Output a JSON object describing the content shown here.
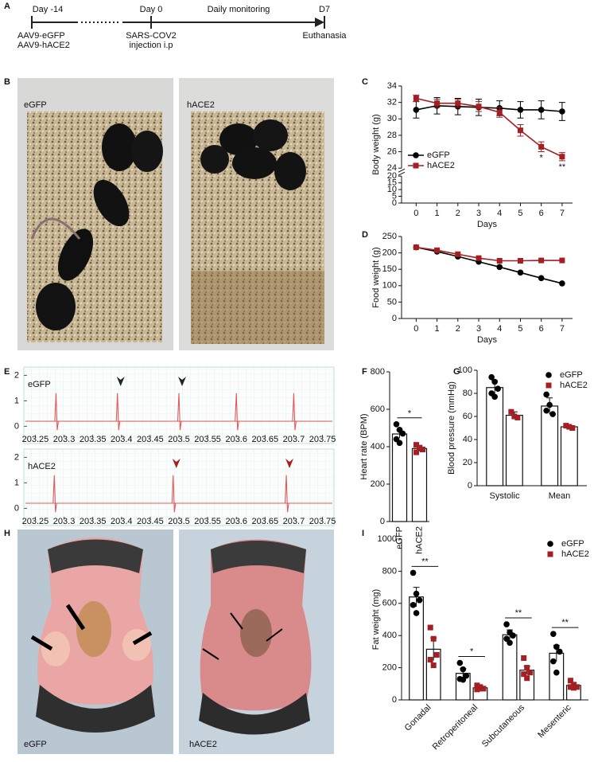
{
  "panel_labels": [
    "A",
    "B",
    "C",
    "D",
    "E",
    "F",
    "G",
    "H",
    "I"
  ],
  "timeline": {
    "points": [
      {
        "top": "Day -14",
        "bottom": [
          "AAV9-eGFP",
          "AAV9-hACE2"
        ]
      },
      {
        "top": "Day 0",
        "bottom": [
          "SARS-COV2",
          "injection i.p"
        ]
      },
      {
        "top": "D7",
        "bottom": [
          "Euthanasia"
        ]
      }
    ],
    "span_label": "Daily monitoring"
  },
  "photo_labels": {
    "B": [
      "eGFP",
      "hACE2"
    ],
    "H": [
      "eGFP",
      "hACE2"
    ]
  },
  "chart_data": [
    {
      "type": "line",
      "ylabel": "Body weight (g)",
      "xlabel": "Days",
      "x": [
        0,
        1,
        2,
        3,
        4,
        5,
        6,
        7
      ],
      "xlim": [
        -0.7,
        7.5
      ],
      "xticks": [
        0,
        1,
        2,
        3,
        4,
        5,
        6,
        7
      ],
      "ylim": [
        0,
        34
      ],
      "ybreak": [
        20,
        24
      ],
      "yticks": [
        0,
        5,
        10,
        15,
        20,
        24,
        26,
        28,
        30,
        32,
        34
      ],
      "legend": "lower left",
      "series": [
        {
          "name": "eGFP",
          "color": "#000000",
          "marker": "circle",
          "values": [
            31.1,
            31.6,
            31.5,
            31.4,
            31.3,
            31.1,
            31.1,
            30.9
          ],
          "errors": [
            1.0,
            1.0,
            1.0,
            1.0,
            0.9,
            1.0,
            1.1,
            1.1
          ]
        },
        {
          "name": "hACE2",
          "color": "#a31f24",
          "marker": "square",
          "values": [
            32.5,
            31.9,
            31.9,
            31.5,
            30.8,
            28.6,
            26.6,
            25.4
          ],
          "errors": [
            0.4,
            0.5,
            0.5,
            0.6,
            0.6,
            0.7,
            0.6,
            0.5
          ]
        }
      ],
      "annotations": [
        {
          "x": 6,
          "text": "*"
        },
        {
          "x": 7,
          "text": "**"
        }
      ]
    },
    {
      "type": "line",
      "ylabel": "Food weight (g)",
      "xlabel": "Days",
      "x": [
        0,
        1,
        2,
        3,
        4,
        5,
        6,
        7
      ],
      "xlim": [
        -0.7,
        7.5
      ],
      "xticks": [
        0,
        1,
        2,
        3,
        4,
        5,
        6,
        7
      ],
      "ylim": [
        0,
        250
      ],
      "yticks": [
        0,
        50,
        100,
        150,
        200,
        250
      ],
      "series": [
        {
          "name": "eGFP",
          "color": "#000000",
          "marker": "circle",
          "values": [
            217,
            204,
            189,
            173,
            157,
            140,
            123,
            107
          ]
        },
        {
          "name": "hACE2",
          "color": "#a31f24",
          "marker": "square",
          "values": [
            217,
            208,
            196,
            184,
            176,
            176,
            177,
            177
          ]
        }
      ]
    },
    {
      "type": "ecg",
      "xlim": [
        203.23,
        203.77
      ],
      "xticks": [
        203.25,
        203.3,
        203.35,
        203.4,
        203.45,
        203.5,
        203.55,
        203.6,
        203.65,
        203.7,
        203.75
      ],
      "ylim": [
        -0.3,
        2.2
      ],
      "yticks": [
        0,
        1,
        2
      ],
      "strips": [
        {
          "label": "eGFP",
          "label_color": "#000000",
          "color": "#e05a5a",
          "beats": [
            203.286,
            203.393,
            203.5,
            203.6,
            203.7
          ],
          "arrows": [
            203.393,
            203.5
          ],
          "arrow_color": "#222222"
        },
        {
          "label": "hACE2",
          "label_color": "#a31f24",
          "color": "#e05a5a",
          "beats": [
            203.283,
            203.49,
            203.687
          ],
          "arrows": [
            203.49,
            203.687
          ],
          "arrow_color": "#a31f24"
        }
      ]
    },
    {
      "type": "bar",
      "ylabel": "Heart rate (BPM)",
      "categories": [
        "eGFP",
        "hACE2"
      ],
      "values": [
        468,
        390
      ],
      "errors": [
        22,
        14
      ],
      "points": [
        [
          520,
          490,
          470,
          440,
          420
        ],
        [
          410,
          395,
          385,
          370
        ]
      ],
      "colors": [
        "#000000",
        "#a31f24"
      ],
      "markers": [
        "circle",
        "square"
      ],
      "ylim": [
        0,
        800
      ],
      "yticks": [
        0,
        200,
        400,
        600,
        800
      ],
      "significance": "*"
    },
    {
      "type": "bar",
      "ylabel": "Blood pressure (mmHg)",
      "categories": [
        "Systolic",
        "Mean"
      ],
      "ylim": [
        0,
        100
      ],
      "yticks": [
        0,
        20,
        40,
        60,
        80,
        100
      ],
      "legend": "upper right",
      "series": [
        {
          "name": "eGFP",
          "color": "#000000",
          "marker": "circle",
          "values": [
            85,
            69
          ],
          "errors": [
            6,
            7
          ],
          "points": [
            [
              94,
              90,
              84,
              80,
              77
            ],
            [
              79,
              70,
              62,
              65
            ]
          ]
        },
        {
          "name": "hACE2",
          "color": "#a31f24",
          "marker": "square",
          "values": [
            61,
            51
          ],
          "errors": [
            3,
            1
          ],
          "points": [
            [
              64,
              60,
              59
            ],
            [
              52,
              51,
              50
            ]
          ]
        }
      ]
    },
    {
      "type": "bar",
      "ylabel": "Fat weight (mg)",
      "categories": [
        "Gonadal",
        "Retroperitoneal",
        "Subcutaneous",
        "Mesenteric"
      ],
      "ylim": [
        0,
        1000
      ],
      "yticks": [
        0,
        200,
        400,
        600,
        800,
        1000
      ],
      "legend": "upper right",
      "series": [
        {
          "name": "eGFP",
          "color": "#000000",
          "marker": "circle",
          "values": [
            640,
            165,
            405,
            290
          ],
          "errors": [
            60,
            30,
            30,
            50
          ],
          "points": [
            [
              790,
              660,
              620,
              590,
              540
            ],
            [
              230,
              190,
              150,
              130,
              125
            ],
            [
              470,
              420,
              400,
              380,
              355
            ],
            [
              410,
              330,
              300,
              240,
              170
            ]
          ]
        },
        {
          "name": "hACE2",
          "color": "#a31f24",
          "marker": "square",
          "values": [
            315,
            75,
            185,
            90
          ],
          "errors": [
            70,
            10,
            25,
            15
          ],
          "points": [
            [
              450,
              380,
              280,
              250,
              215
            ],
            [
              90,
              80,
              70,
              65,
              70
            ],
            [
              260,
              200,
              170,
              160,
              135
            ],
            [
              120,
              95,
              80,
              80,
              75
            ]
          ]
        }
      ],
      "significance": [
        "**",
        "*",
        "**",
        "**"
      ]
    }
  ]
}
